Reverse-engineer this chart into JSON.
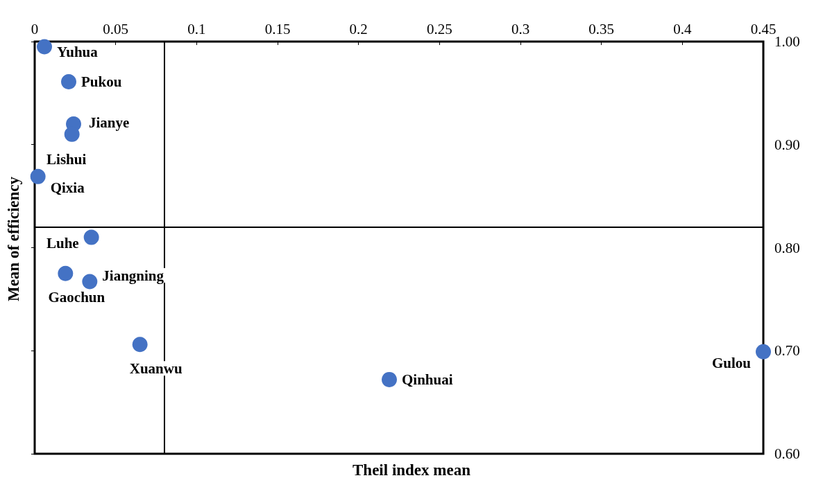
{
  "chart_data": {
    "type": "scatter",
    "xlabel": "Theil index mean",
    "ylabel": "Mean of efficiency",
    "series": [
      {
        "color": "#4472c4",
        "x": [
          0.006,
          0.021,
          0.024,
          0.023,
          0.002,
          0.035,
          0.019,
          0.034,
          0.065,
          0.219,
          0.45
        ],
        "values": [
          0.995,
          0.961,
          0.92,
          0.91,
          0.869,
          0.81,
          0.775,
          0.767,
          0.706,
          0.672,
          0.699
        ],
        "value_labels": [
          "Yuhua",
          "Pukou",
          "Jianye",
          "Lishui",
          "Qixia",
          "Luhe",
          "Gaochun",
          "Jiangning",
          "Xuanwu",
          "Qinhuai",
          "Gulou"
        ]
      }
    ],
    "xlim": [
      0,
      0.45
    ],
    "xticks": [
      0,
      0.05,
      0.1,
      0.15,
      0.2,
      0.25,
      0.3,
      0.35,
      0.4,
      0.45
    ],
    "ylim": [
      0.6,
      1.0
    ],
    "yticks": [
      {
        "value": 0.6,
        "label": "0.60"
      },
      {
        "value": 0.7,
        "label": "0.70"
      },
      {
        "value": 0.8,
        "label": "0.80"
      },
      {
        "value": 0.9,
        "label": "0.90"
      },
      {
        "value": 1.0,
        "label": "1.00"
      }
    ],
    "ref_lines": [
      {
        "axis": "x",
        "value": 0.08,
        "color": "#000000"
      },
      {
        "axis": "y",
        "value": 0.82,
        "color": "#000000"
      }
    ],
    "grid": false,
    "marker": "circle"
  }
}
